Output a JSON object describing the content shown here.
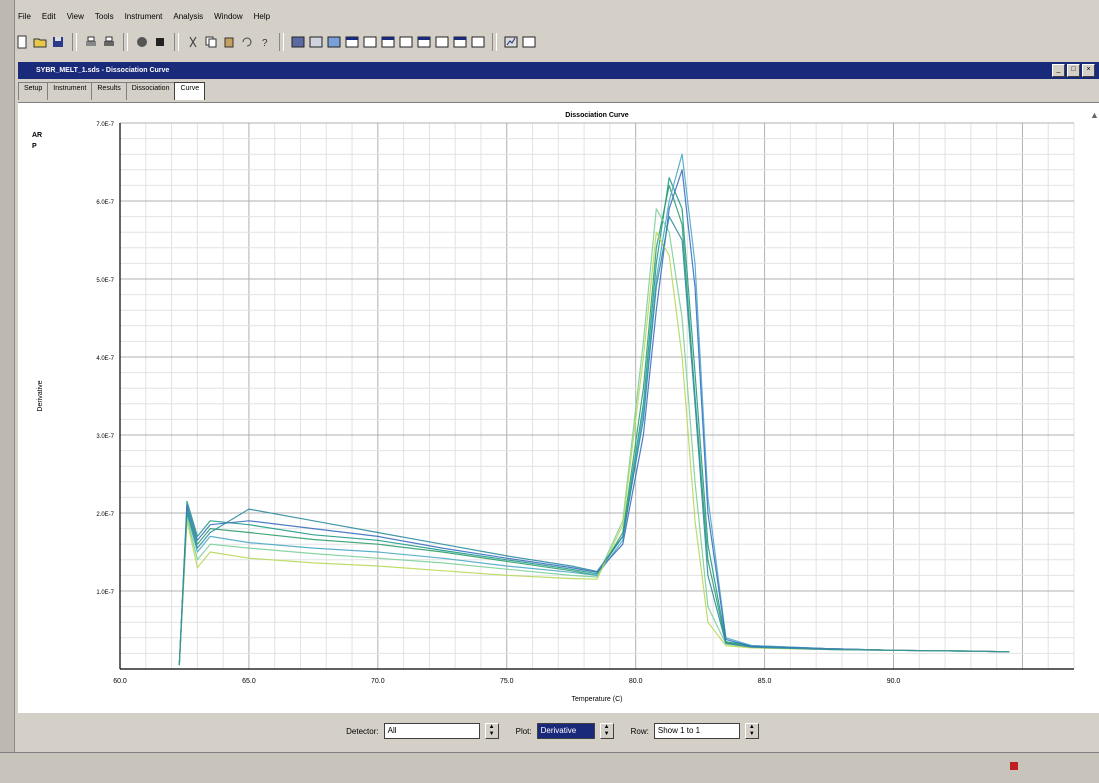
{
  "menu": [
    "File",
    "Edit",
    "View",
    "Tools",
    "Instrument",
    "Analysis",
    "Window",
    "Help"
  ],
  "document": {
    "title": "SYBR_MELT_1.sds - Dissociation Curve",
    "tabs": [
      "Setup",
      "Instrument",
      "Results",
      "Dissociation",
      "Curve"
    ],
    "active_tab": "Curve"
  },
  "side_marks": [
    "AR",
    "P"
  ],
  "chart_data": {
    "type": "line",
    "title": "Dissociation Curve",
    "xlabel": "Temperature (C)",
    "ylabel": "Derivative",
    "xlim": [
      60,
      97
    ],
    "ylim": [
      0,
      7e-07
    ],
    "x_ticks": [
      "60.0",
      "65.0",
      "70.0",
      "75.0",
      "80.0",
      "85.0",
      "90.0"
    ],
    "y_ticks": [
      "7.0E-7",
      "6.0E-7",
      "5.0E-7",
      "4.0E-7",
      "3.0E-7",
      "2.0E-7",
      "1.0E-7"
    ],
    "x": [
      62.3,
      62.6,
      63.0,
      63.5,
      65.0,
      67.5,
      70.0,
      72.5,
      75.0,
      77.5,
      78.5,
      79.5,
      80.3,
      80.8,
      81.3,
      81.8,
      82.3,
      82.8,
      83.5,
      84.5,
      87.5,
      90.0,
      93.0,
      94.5
    ],
    "series": [
      {
        "color": "#1e9a8a",
        "values": [
          0.05,
          2.15,
          1.7,
          1.9,
          1.85,
          1.72,
          1.65,
          1.52,
          1.4,
          1.28,
          1.22,
          1.7,
          3.4,
          5.2,
          6.3,
          5.9,
          3.8,
          1.6,
          0.35,
          0.3,
          0.26,
          0.24,
          0.23,
          0.22
        ]
      },
      {
        "color": "#2d9f6c",
        "values": [
          0.05,
          2.05,
          1.6,
          1.8,
          1.75,
          1.66,
          1.6,
          1.5,
          1.38,
          1.26,
          1.2,
          1.75,
          3.6,
          5.4,
          6.2,
          5.7,
          3.5,
          1.4,
          0.34,
          0.29,
          0.26,
          0.24,
          0.23,
          0.22
        ]
      },
      {
        "color": "#4aa8c8",
        "values": [
          0.05,
          2.0,
          1.5,
          1.7,
          1.62,
          1.55,
          1.5,
          1.42,
          1.32,
          1.24,
          1.2,
          1.65,
          3.3,
          5.0,
          6.0,
          6.6,
          5.2,
          2.2,
          0.4,
          0.3,
          0.26,
          0.24,
          0.23,
          0.22
        ]
      },
      {
        "color": "#7ccf9a",
        "values": [
          0.05,
          1.95,
          1.4,
          1.6,
          1.55,
          1.48,
          1.42,
          1.36,
          1.28,
          1.2,
          1.18,
          1.9,
          4.2,
          5.9,
          5.6,
          4.5,
          2.4,
          0.8,
          0.32,
          0.28,
          0.25,
          0.24,
          0.23,
          0.22
        ]
      },
      {
        "color": "#3a6ec0",
        "values": [
          0.05,
          2.1,
          1.65,
          1.85,
          1.9,
          1.8,
          1.7,
          1.55,
          1.42,
          1.3,
          1.24,
          1.6,
          3.0,
          4.6,
          5.9,
          6.4,
          4.9,
          2.0,
          0.38,
          0.29,
          0.26,
          0.24,
          0.23,
          0.22
        ]
      },
      {
        "color": "#b8d85a",
        "values": [
          0.05,
          1.9,
          1.3,
          1.5,
          1.42,
          1.36,
          1.32,
          1.26,
          1.2,
          1.16,
          1.15,
          1.85,
          4.0,
          5.6,
          5.3,
          4.0,
          1.9,
          0.6,
          0.3,
          0.27,
          0.25,
          0.24,
          0.23,
          0.22
        ]
      },
      {
        "color": "#2c8ba0",
        "values": [
          0.05,
          2.02,
          1.55,
          1.75,
          2.05,
          1.9,
          1.75,
          1.6,
          1.45,
          1.32,
          1.25,
          1.7,
          3.2,
          4.9,
          5.8,
          5.5,
          3.4,
          1.2,
          0.33,
          0.28,
          0.25,
          0.24,
          0.23,
          0.22
        ]
      }
    ]
  },
  "bottom_controls": {
    "detector_label": "Detector:",
    "detector_value": "All",
    "plot_label": "Plot:",
    "plot_value": "Derivative",
    "row_label": "Row:",
    "row_value": "Show 1 to 1"
  }
}
